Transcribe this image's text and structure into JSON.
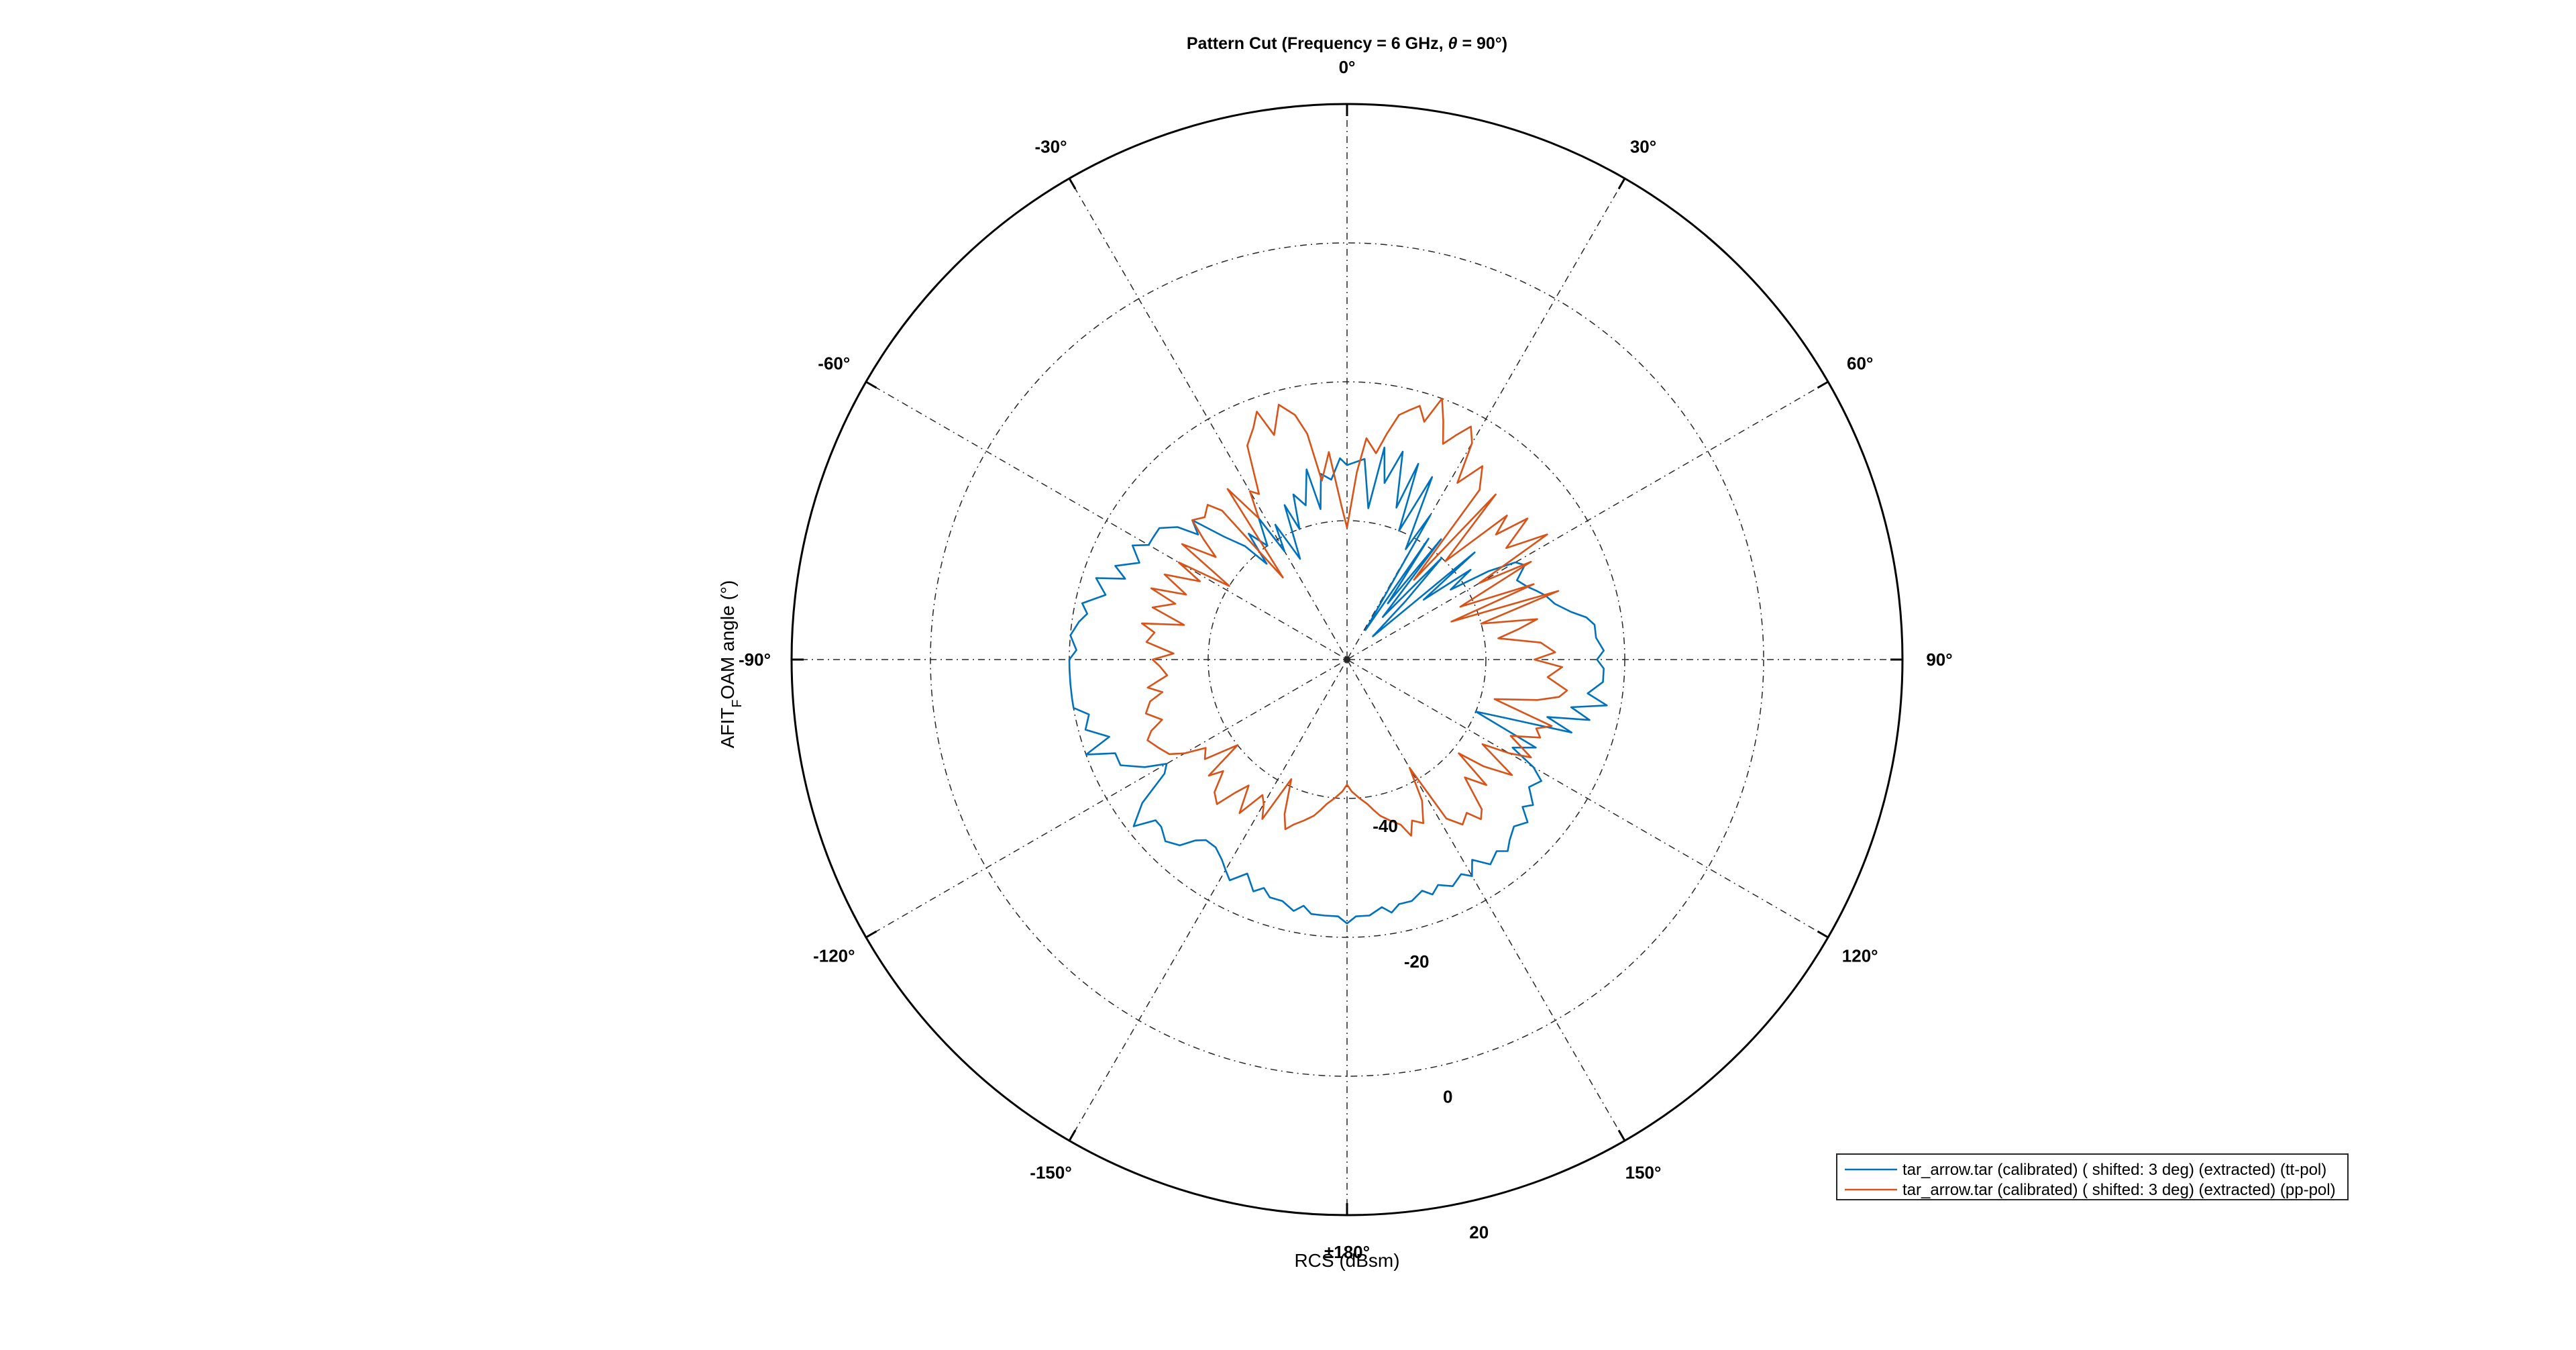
{
  "chart_data": {
    "type": "polar-line",
    "title_prefix": "Pattern Cut (Frequency = 6 GHz, ",
    "title_theta": "θ",
    "title_suffix": " = 90°)",
    "xlabel": "RCS (dBsm)",
    "ylabel_main": "AFIT",
    "ylabel_sub": "F",
    "ylabel_rest": "OAM angle (°)",
    "angle_ticks": [
      {
        "deg": 0,
        "label": "0°"
      },
      {
        "deg": 30,
        "label": "30°"
      },
      {
        "deg": 60,
        "label": "60°"
      },
      {
        "deg": 90,
        "label": "90°"
      },
      {
        "deg": 120,
        "label": "120°"
      },
      {
        "deg": 150,
        "label": "150°"
      },
      {
        "deg": 180,
        "label": "±180°"
      },
      {
        "deg": -150,
        "label": "-150°"
      },
      {
        "deg": -120,
        "label": "-120°"
      },
      {
        "deg": -90,
        "label": "-90°"
      },
      {
        "deg": -60,
        "label": "-60°"
      },
      {
        "deg": -30,
        "label": "-30°"
      }
    ],
    "r_ticks": [
      -40,
      -20,
      0,
      20
    ],
    "r_tick_labels": [
      "-40",
      "-20",
      "0",
      "20"
    ],
    "rlim": [
      -60,
      20
    ],
    "angle_direction": "clockwise",
    "zero_location": "top",
    "grid": true,
    "legend_location": "bottom-right",
    "series": [
      {
        "name": "tar_arrow.tar (calibrated) ( shifted: 3 deg) (extracted) (tt-pol)",
        "color": "#0072BD",
        "angles_deg": [
          0,
          5,
          8,
          10,
          12,
          15,
          18,
          20,
          22,
          25,
          28,
          30,
          32,
          34,
          36,
          38,
          40,
          43,
          45,
          48,
          50,
          52,
          54,
          56,
          58,
          60,
          62,
          65,
          68,
          70,
          72,
          75,
          78,
          80,
          82,
          85,
          88,
          90,
          92,
          95,
          98,
          100,
          102,
          104,
          106,
          108,
          110,
          112,
          115,
          118,
          120,
          122,
          125,
          128,
          130,
          132,
          135,
          138,
          140,
          142,
          145,
          148,
          150,
          152,
          155,
          158,
          160,
          162,
          165,
          168,
          170,
          172,
          175,
          178,
          180,
          182,
          185,
          188,
          190,
          192,
          195,
          198,
          200,
          202,
          205,
          208,
          210,
          212,
          215,
          218,
          220,
          222,
          225,
          228,
          230,
          232,
          235,
          238,
          240,
          242,
          245,
          248,
          250,
          252,
          255,
          258,
          260,
          262,
          265,
          268,
          270,
          272,
          275,
          278,
          280,
          282,
          285,
          288,
          290,
          292,
          295,
          298,
          300,
          302,
          305,
          308,
          310,
          312,
          315,
          318,
          320,
          322,
          325,
          328,
          330,
          332,
          335,
          338,
          340,
          342,
          345,
          348,
          350,
          352,
          355,
          358,
          360
        ],
        "values_db": [
          -32,
          -31,
          -38,
          -29,
          -34,
          -29,
          -37,
          -30,
          -40,
          -31,
          -42,
          -36,
          -55,
          -39,
          -50,
          -38,
          -52,
          -40,
          -48,
          -55,
          -36,
          -46,
          -38,
          -42,
          -36,
          -32,
          -31,
          -33,
          -32,
          -31,
          -30,
          -29,
          -27,
          -25,
          -24,
          -24,
          -23,
          -24,
          -23,
          -23,
          -25,
          -22,
          -27,
          -24,
          -30,
          -26,
          -35,
          -40,
          -30,
          -33,
          -29,
          -27,
          -28,
          -26,
          -27,
          -25,
          -26,
          -25,
          -24,
          -25,
          -24,
          -26,
          -24,
          -25,
          -24,
          -25,
          -24,
          -25,
          -24,
          -24,
          -23,
          -24,
          -23,
          -23,
          -22,
          -23,
          -23,
          -23,
          -24,
          -23,
          -24,
          -24,
          -25,
          -24,
          -26,
          -24,
          -25,
          -26,
          -27,
          -27,
          -26,
          -24,
          -23,
          -24,
          -24,
          -21,
          -24,
          -29,
          -30,
          -27,
          -24,
          -24,
          -20,
          -24,
          -21,
          -22,
          -20,
          -20,
          -20,
          -20,
          -20,
          -21,
          -20,
          -21,
          -22,
          -21,
          -24,
          -22,
          -26,
          -24,
          -27,
          -25,
          -27,
          -27,
          -27,
          -29,
          -32,
          -30,
          -35,
          -38,
          -42,
          -37,
          -40,
          -36,
          -42,
          -38,
          -44,
          -36,
          -40,
          -35,
          -37,
          -32,
          -38,
          -33,
          -34,
          -31,
          -32
        ]
      },
      {
        "name": "tar_arrow.tar (calibrated) ( shifted: 3 deg) (extracted) (pp-pol)",
        "color": "#D95319",
        "angles_deg": [
          0,
          3,
          5,
          8,
          10,
          12,
          14,
          16,
          18,
          20,
          22,
          24,
          26,
          28,
          30,
          32,
          35,
          38,
          40,
          42,
          45,
          48,
          50,
          52,
          55,
          58,
          60,
          62,
          65,
          68,
          70,
          72,
          75,
          78,
          80,
          82,
          85,
          88,
          90,
          92,
          95,
          98,
          100,
          102,
          105,
          108,
          110,
          112,
          115,
          118,
          120,
          122,
          125,
          128,
          130,
          132,
          135,
          138,
          140,
          142,
          145,
          148,
          150,
          152,
          155,
          158,
          160,
          162,
          165,
          168,
          170,
          172,
          175,
          178,
          180,
          182,
          185,
          188,
          190,
          192,
          195,
          198,
          200,
          202,
          205,
          208,
          210,
          212,
          215,
          218,
          220,
          222,
          225,
          228,
          230,
          232,
          235,
          238,
          240,
          242,
          245,
          248,
          250,
          252,
          255,
          258,
          260,
          262,
          265,
          268,
          270,
          272,
          275,
          278,
          280,
          282,
          285,
          288,
          290,
          292,
          295,
          298,
          300,
          302,
          305,
          308,
          310,
          312,
          315,
          318,
          320,
          322,
          325,
          328,
          330,
          332,
          335,
          338,
          340,
          342,
          345,
          348,
          350,
          352,
          355,
          358,
          360
        ],
        "values_db": [
          -41,
          -33,
          -28,
          -30,
          -27,
          -24,
          -23,
          -22,
          -24,
          -20,
          -23,
          -26,
          -24,
          -22,
          -24,
          -30,
          -26,
          -29,
          -45,
          -28,
          -40,
          -29,
          -32,
          -27,
          -32,
          -26,
          -38,
          -30,
          -42,
          -31,
          -44,
          -28,
          -40,
          -32,
          -35,
          -38,
          -32,
          -30,
          -33,
          -29,
          -31,
          -28,
          -29,
          -32,
          -38,
          -29,
          -31,
          -30,
          -34,
          -30,
          -33,
          -37,
          -31,
          -35,
          -39,
          -33,
          -36,
          -31,
          -30,
          -32,
          -31,
          -33,
          -42,
          -37,
          -34,
          -35,
          -33,
          -35,
          -36,
          -37,
          -38,
          -39,
          -40,
          -41,
          -42,
          -41,
          -40,
          -39,
          -38,
          -37,
          -36,
          -35,
          -34,
          -36,
          -41,
          -34,
          -36,
          -37,
          -33,
          -37,
          -35,
          -32,
          -33,
          -36,
          -34,
          -40,
          -35,
          -36,
          -33,
          -31,
          -30,
          -29,
          -30,
          -32,
          -30,
          -31,
          -33,
          -31,
          -34,
          -33,
          -32,
          -35,
          -31,
          -32,
          -30,
          -36,
          -31,
          -34,
          -30,
          -35,
          -31,
          -36,
          -32,
          -40,
          -31,
          -36,
          -33,
          -30,
          -31,
          -30,
          -32,
          -45,
          -30,
          -36,
          -32,
          -33,
          -26,
          -24,
          -22,
          -26,
          -22,
          -24,
          -27,
          -34,
          -30,
          -38,
          -41
        ]
      }
    ]
  }
}
